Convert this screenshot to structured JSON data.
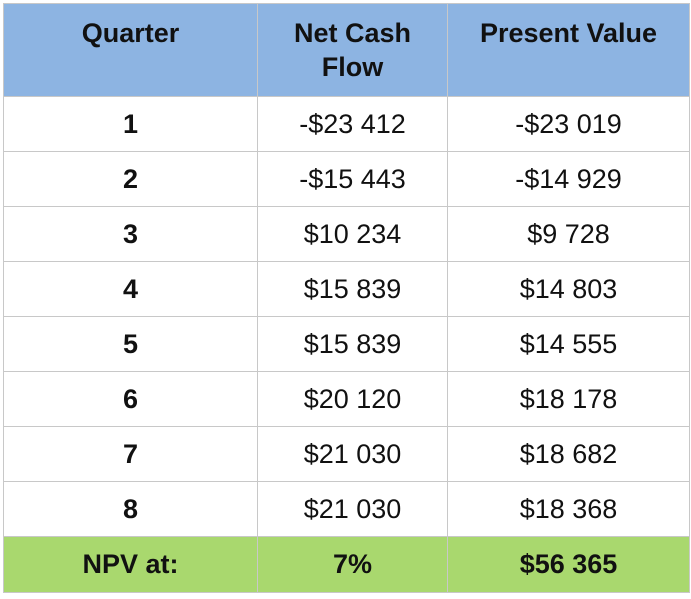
{
  "table": {
    "headers": {
      "quarter": "Quarter",
      "net_cash_flow": "Net Cash Flow",
      "present_value": "Present Value"
    },
    "rows": [
      {
        "quarter": "1",
        "net_cash_flow": "-$23 412",
        "present_value": "-$23 019"
      },
      {
        "quarter": "2",
        "net_cash_flow": "-$15 443",
        "present_value": "-$14 929"
      },
      {
        "quarter": "3",
        "net_cash_flow": "$10 234",
        "present_value": "$9 728"
      },
      {
        "quarter": "4",
        "net_cash_flow": "$15 839",
        "present_value": "$14 803"
      },
      {
        "quarter": "5",
        "net_cash_flow": "$15 839",
        "present_value": "$14 555"
      },
      {
        "quarter": "6",
        "net_cash_flow": "$20 120",
        "present_value": "$18 178"
      },
      {
        "quarter": "7",
        "net_cash_flow": "$21 030",
        "present_value": "$18 682"
      },
      {
        "quarter": "8",
        "net_cash_flow": "$21 030",
        "present_value": "$18 368"
      }
    ],
    "footer": {
      "label": "NPV at:",
      "rate": "7%",
      "npv": "$56 365"
    }
  },
  "colors": {
    "header_bg": "#8db4e2",
    "footer_bg": "#a9d86e",
    "border": "#c8c8c8"
  }
}
